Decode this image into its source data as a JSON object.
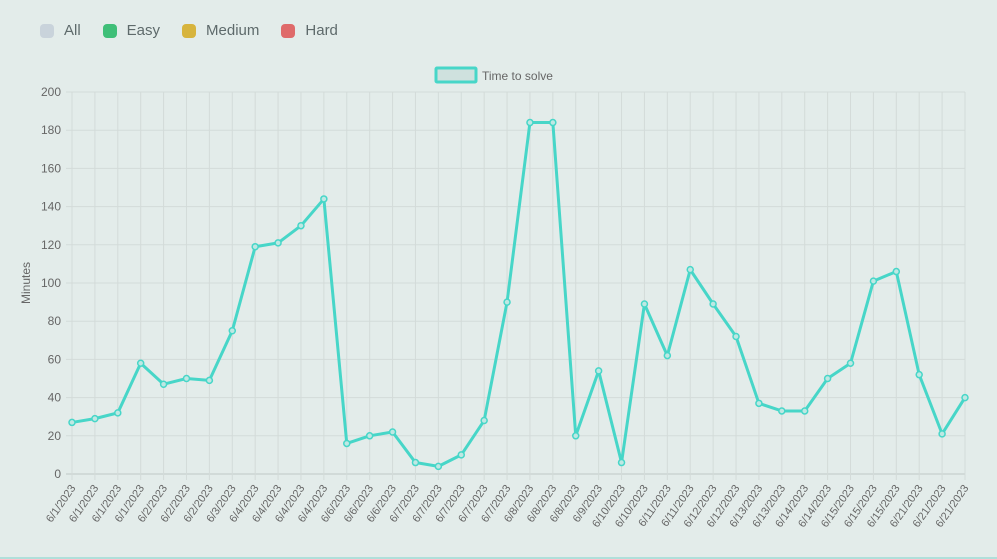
{
  "filters": [
    {
      "label": "All",
      "color": "#c9d3db"
    },
    {
      "label": "Easy",
      "color": "#3fbf78"
    },
    {
      "label": "Medium",
      "color": "#d7b43d"
    },
    {
      "label": "Hard",
      "color": "#df6a6a"
    }
  ],
  "chart_data": {
    "type": "line",
    "legend_label": "Time to solve",
    "ylabel": "Minutes",
    "ylim": [
      0,
      200
    ],
    "yticks": [
      0,
      20,
      40,
      60,
      80,
      100,
      120,
      140,
      160,
      180,
      200
    ],
    "grid": true,
    "legend_position": "top-center",
    "line_color": "#47d6c8",
    "categories": [
      "6/1/2023",
      "6/1/2023",
      "6/1/2023",
      "6/1/2023",
      "6/2/2023",
      "6/2/2023",
      "6/2/2023",
      "6/3/2023",
      "6/4/2023",
      "6/4/2023",
      "6/4/2023",
      "6/4/2023",
      "6/6/2023",
      "6/6/2023",
      "6/6/2023",
      "6/7/2023",
      "6/7/2023",
      "6/7/2023",
      "6/7/2023",
      "6/7/2023",
      "6/8/2023",
      "6/8/2023",
      "6/8/2023",
      "6/9/2023",
      "6/10/2023",
      "6/10/2023",
      "6/11/2023",
      "6/11/2023",
      "6/12/2023",
      "6/12/2023",
      "6/13/2023",
      "6/13/2023",
      "6/14/2023",
      "6/14/2023",
      "6/15/2023",
      "6/15/2023",
      "6/15/2023",
      "6/21/2023",
      "6/21/2023",
      "6/21/2023"
    ],
    "values": [
      27,
      29,
      32,
      58,
      47,
      50,
      49,
      75,
      119,
      121,
      130,
      144,
      16,
      20,
      22,
      6,
      4,
      10,
      28,
      90,
      184,
      184,
      20,
      54,
      6,
      89,
      62,
      107,
      89,
      72,
      37,
      33,
      33,
      50,
      58,
      101,
      106,
      52,
      21,
      40
    ]
  }
}
